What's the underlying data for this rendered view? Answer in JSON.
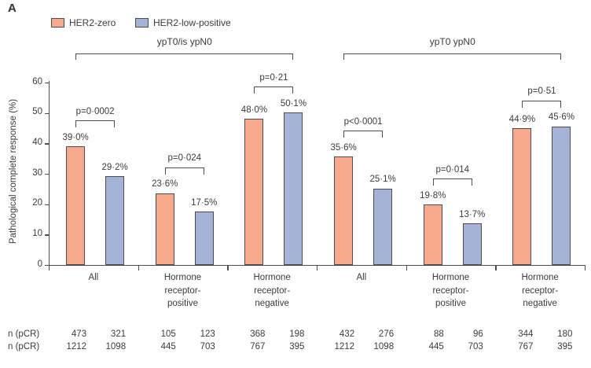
{
  "panel_label": "A",
  "legend": {
    "items": [
      {
        "label": "HER2-zero"
      },
      {
        "label": "HER2-low-positive"
      }
    ]
  },
  "colors": {
    "her2_zero_fill": "#f7a98d",
    "her2_low_fill": "#a6b3d7",
    "outline": "#4d4d4d",
    "text": "#3b3b3b"
  },
  "chart_data": {
    "type": "bar",
    "title": "",
    "ylabel": "Pathological complete response (%)",
    "xlabel": "",
    "ylim": [
      0,
      60
    ],
    "yticks": [
      0,
      10,
      20,
      30,
      40,
      50,
      60
    ],
    "grid": false,
    "legend_position": "top-left",
    "series_names": [
      "HER2-zero",
      "HER2-low-positive"
    ],
    "table_row_labels": [
      "n (pCR)",
      "n (pCR)"
    ],
    "groups": [
      {
        "label": "ypT0/is ypN0",
        "categories": [
          {
            "label": "All",
            "values": [
              39.0,
              29.2
            ],
            "value_labels": [
              "39·0%",
              "29·2%"
            ],
            "p_value": "p=0·0002",
            "n_row1": [
              "473",
              "321"
            ],
            "n_row2": [
              "1212",
              "1098"
            ]
          },
          {
            "label": "Hormone\nreceptor-\npositive",
            "values": [
              23.6,
              17.5
            ],
            "value_labels": [
              "23·6%",
              "17·5%"
            ],
            "p_value": "p=0·024",
            "n_row1": [
              "105",
              "123"
            ],
            "n_row2": [
              "445",
              "703"
            ]
          },
          {
            "label": "Hormone\nreceptor-\nnegative",
            "values": [
              48.0,
              50.1
            ],
            "value_labels": [
              "48·0%",
              "50·1%"
            ],
            "p_value": "p=0·21",
            "n_row1": [
              "368",
              "198"
            ],
            "n_row2": [
              "767",
              "395"
            ]
          }
        ]
      },
      {
        "label": "ypT0 ypN0",
        "categories": [
          {
            "label": "All",
            "values": [
              35.6,
              25.1
            ],
            "value_labels": [
              "35·6%",
              "25·1%"
            ],
            "p_value": "p<0·0001",
            "n_row1": [
              "432",
              "276"
            ],
            "n_row2": [
              "1212",
              "1098"
            ]
          },
          {
            "label": "Hormone\nreceptor-\npositive",
            "values": [
              19.8,
              13.7
            ],
            "value_labels": [
              "19·8%",
              "13·7%"
            ],
            "p_value": "p=0·014",
            "n_row1": [
              "88",
              "96"
            ],
            "n_row2": [
              "445",
              "703"
            ]
          },
          {
            "label": "Hormone\nreceptor-\nnegative",
            "values": [
              44.9,
              45.6
            ],
            "value_labels": [
              "44·9%",
              "45·6%"
            ],
            "p_value": "p=0·51",
            "n_row1": [
              "344",
              "180"
            ],
            "n_row2": [
              "767",
              "395"
            ]
          }
        ]
      }
    ]
  }
}
